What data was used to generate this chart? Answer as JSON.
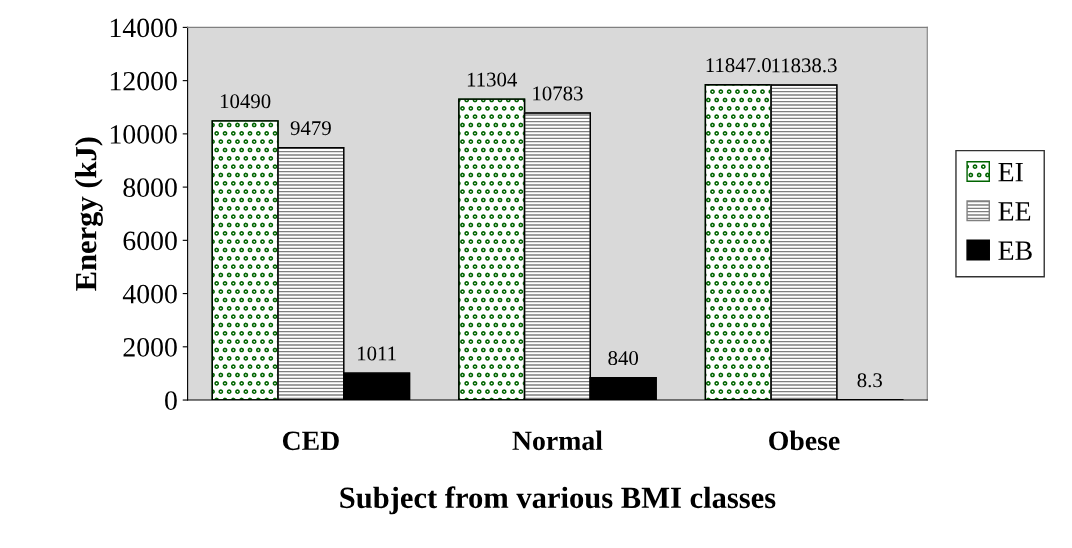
{
  "chart_data": {
    "type": "bar",
    "xlabel": "Subject from various BMI classes",
    "ylabel": "Energy (kJ)",
    "categories": [
      "CED",
      "Normal",
      "Obese"
    ],
    "series": [
      {
        "name": "EI",
        "color": "#006400",
        "values": [
          10490,
          11304,
          11847.0
        ],
        "value_labels": [
          "10490",
          "11304",
          "11847.0"
        ]
      },
      {
        "name": "EE",
        "color": "#808080",
        "values": [
          9479,
          10783,
          11838.3
        ],
        "value_labels": [
          "9479",
          "10783",
          "11838.3"
        ]
      },
      {
        "name": "EB",
        "color": "#000000",
        "values": [
          1011,
          840,
          8.3
        ],
        "value_labels": [
          "1011",
          "840",
          "8.3"
        ]
      }
    ],
    "ylim": [
      0,
      14000
    ],
    "yticks": [
      0,
      2000,
      4000,
      6000,
      8000,
      10000,
      12000,
      14000
    ],
    "grid": false,
    "legend": "right"
  }
}
